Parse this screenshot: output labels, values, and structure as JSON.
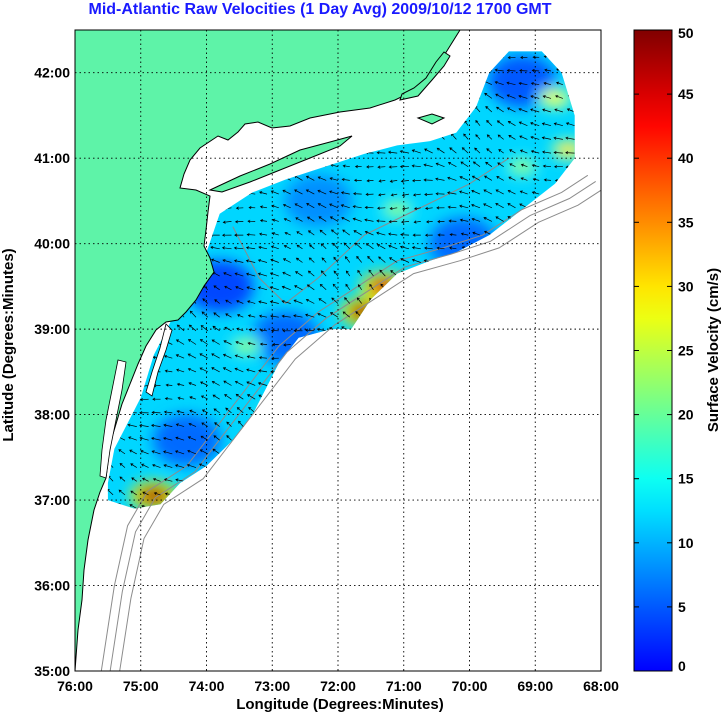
{
  "title": "Mid-Atlantic Raw Velocities (1 Day Avg) 2009/10/12 1700 GMT",
  "map": {
    "xlabel": "Longitude (Degrees:Minutes)",
    "ylabel": "Latitude (Degrees:Minutes)",
    "lon_range": [
      -76,
      -68
    ],
    "lat_range": [
      35,
      42.5
    ],
    "lon_ticks": [
      "76:00",
      "75:00",
      "74:00",
      "73:00",
      "72:00",
      "71:00",
      "70:00",
      "69:00",
      "68:00"
    ],
    "lat_ticks": [
      "35:00",
      "36:00",
      "37:00",
      "38:00",
      "39:00",
      "40:00",
      "41:00",
      "42:00"
    ],
    "grid": "dotted",
    "colors": {
      "land": "#5ef3a8",
      "coast": "#000000",
      "bathymetry": "#8c8c8c",
      "grid": "#000000"
    }
  },
  "colorbar": {
    "label": "Surface Velocity (cm/s)",
    "min": 0,
    "max": 50,
    "ticks": [
      "0",
      "5",
      "10",
      "15",
      "20",
      "25",
      "30",
      "35",
      "40",
      "45",
      "50"
    ],
    "colormap": "jet"
  },
  "chart_data": {
    "type": "heatmap",
    "title": "Mid-Atlantic Raw Velocities (1 Day Avg) 2009/10/12 1700 GMT",
    "xlabel": "Longitude (Degrees:Minutes)",
    "ylabel": "Latitude (Degrees:Minutes)",
    "xlim": [
      -76,
      -68
    ],
    "ylim": [
      35,
      42.5
    ],
    "colorbar_range": [
      0,
      50
    ],
    "hotspots": [
      {
        "lon": -71.6,
        "lat": 39.2,
        "speed": 48
      },
      {
        "lon": -71.3,
        "lat": 39.5,
        "speed": 45
      },
      {
        "lon": -74.8,
        "lat": 37.05,
        "speed": 48
      },
      {
        "lon": -72.9,
        "lat": 38.0,
        "speed": 32
      },
      {
        "lon": -68.5,
        "lat": 41.1,
        "speed": 30
      },
      {
        "lon": -68.7,
        "lat": 41.7,
        "speed": 28
      },
      {
        "lon": -71.1,
        "lat": 40.4,
        "speed": 22
      },
      {
        "lon": -73.4,
        "lat": 38.8,
        "speed": 22
      },
      {
        "lon": -69.2,
        "lat": 40.9,
        "speed": 22
      }
    ],
    "background_speed": 12,
    "low_spots": [
      {
        "lon": -73.8,
        "lat": 39.5,
        "speed": 4
      },
      {
        "lon": -69.2,
        "lat": 41.9,
        "speed": 5
      },
      {
        "lon": -70.1,
        "lat": 40.0,
        "speed": 6
      },
      {
        "lon": -72.8,
        "lat": 38.9,
        "speed": 6
      },
      {
        "lon": -74.3,
        "lat": 37.7,
        "speed": 6
      },
      {
        "lon": -72.3,
        "lat": 40.5,
        "speed": 8
      }
    ]
  }
}
